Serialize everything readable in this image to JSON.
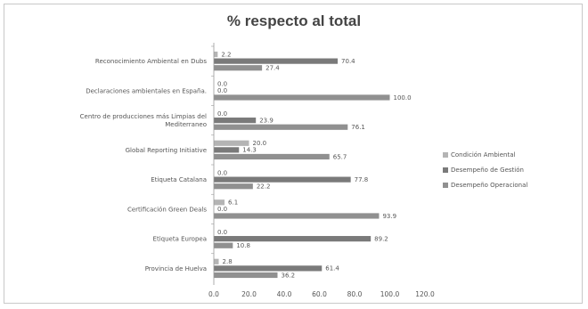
{
  "chart_data": {
    "type": "bar",
    "orientation": "horizontal",
    "title": "% respecto al total",
    "xlabel": "",
    "ylabel": "",
    "xlim": [
      0,
      120
    ],
    "ticks": [
      0,
      20,
      40,
      60,
      80,
      100,
      120
    ],
    "tick_labels": [
      "0.0",
      "20.0",
      "40.0",
      "60.0",
      "80.0",
      "100.0",
      "120.0"
    ],
    "grid": false,
    "legend_position": "right",
    "categories": [
      [
        "Reconocimiento Ambiental en Dubs"
      ],
      [
        "Declaraciones ambientales en España."
      ],
      [
        "Centro de producciones más Limpias del",
        "Mediterraneo"
      ],
      [
        "Global Reporting Initiative"
      ],
      [
        "Etiqueta Catalana"
      ],
      [
        "Certificación Green Deals"
      ],
      [
        "Etiqueta Europea"
      ],
      [
        "Provincia de Huelva"
      ]
    ],
    "series": [
      {
        "name": "Condición Ambiental",
        "color": "#b4b4b4",
        "values": [
          2.2,
          0.0,
          0.0,
          20.0,
          0.0,
          6.1,
          0.0,
          2.8
        ],
        "labels": [
          "2.2",
          "0.0",
          "0.0",
          "20.0",
          "0.0",
          "6.1",
          "0.0",
          "2.8"
        ]
      },
      {
        "name": "Desempeño de Gestión",
        "color": "#7a7a7a",
        "values": [
          70.4,
          0.0,
          23.9,
          14.3,
          77.8,
          0.0,
          89.2,
          61.4
        ],
        "labels": [
          "70.4",
          "0.0",
          "23.9",
          "14.3",
          "77.8",
          "0.0",
          "89.2",
          "61.4"
        ]
      },
      {
        "name": "Desempeño Operacional",
        "color": "#909090",
        "values": [
          27.4,
          100.0,
          76.1,
          65.7,
          22.2,
          93.9,
          10.8,
          36.2
        ],
        "labels": [
          "27.4",
          "100.0",
          "76.1",
          "65.7",
          "22.2",
          "93.9",
          "10.8",
          "36.2"
        ]
      }
    ]
  }
}
